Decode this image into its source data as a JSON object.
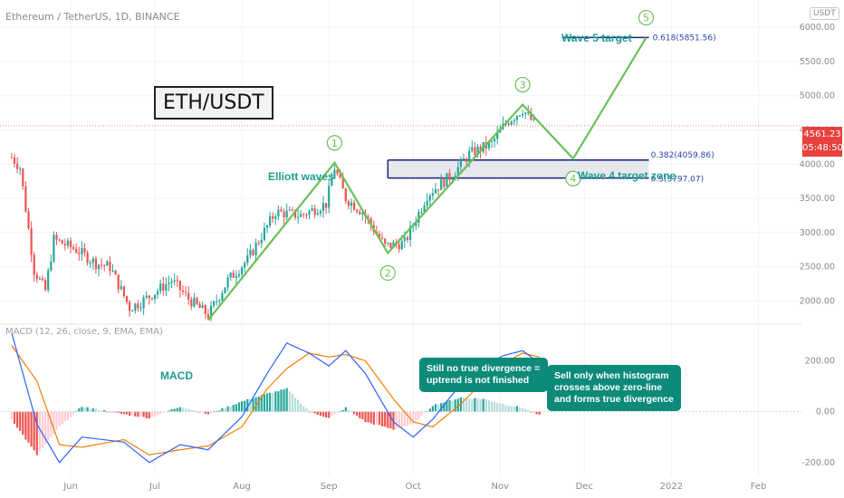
{
  "header": {
    "symbol_title": "Ethereum / TetherUS, 1D, BINANCE",
    "currency_badge": "USDT",
    "pair_label": "ETH/USDT"
  },
  "price_tag": {
    "price": "4561.23",
    "countdown": "05:48:50"
  },
  "annotations": {
    "elliott_label": "Elliott waves",
    "macd_label": "MACD",
    "wave5_target": "Wave 5 target",
    "wave4_zone": "Wave 4 target zone",
    "fib_618": "0.618(5851.56)",
    "fib_382": "0.382(4059.86)",
    "fib_5": "0.5(3797.07)",
    "wave_numbers": [
      "1",
      "2",
      "3",
      "4",
      "5"
    ],
    "note_divergence": "Still no true divergence = uptrend is not finished",
    "note_sell": "Sell only when histogram crosses above zero-line and forms true divergence"
  },
  "macd_indicator": {
    "title": "MACD (12, 26, close, 9, EMA, EMA)"
  },
  "colors": {
    "bull": "#26a69a",
    "bear": "#ef5350",
    "wave_line": "#6cbf5a",
    "macd_line": "#2962ff",
    "signal_line": "#f57c00",
    "zone_fill": "#e6e8ee",
    "zone_border": "#1a237e",
    "note_bg": "#0d8a7a"
  },
  "chart_data": {
    "type": "candlestick",
    "x_tick_labels": [
      "Jun",
      "Jul",
      "Aug",
      "Sep",
      "Oct",
      "Nov",
      "Dec",
      "2022",
      "Feb"
    ],
    "price_axis": {
      "ticks": [
        2000,
        2500,
        3000,
        3500,
        4000,
        4500,
        5000,
        5500,
        6000
      ],
      "tick_labels": [
        "2000.00",
        "2500.00",
        "3000.00",
        "3500.00",
        "4000.00",
        "4500.00",
        "5000.00",
        "5500.00",
        "6000.00"
      ],
      "range": [
        1700,
        6400
      ]
    },
    "macd_axis": {
      "ticks": [
        -200,
        0,
        200
      ],
      "tick_labels": [
        "-200.00",
        "0.00",
        "200.00"
      ],
      "range": [
        -240,
        330
      ]
    },
    "last_price": 4561.23,
    "wave_count": [
      {
        "label": "start",
        "date": "2021-07-20",
        "price": 1720
      },
      {
        "label": "1",
        "date": "2021-09-03",
        "price": 4020
      },
      {
        "label": "2",
        "date": "2021-09-22",
        "price": 2700
      },
      {
        "label": "3",
        "date": "2021-11-09",
        "price": 4870
      },
      {
        "label": "4",
        "date": "2021-11-27",
        "price": 4080
      },
      {
        "label": "5",
        "date": "2021-12-23",
        "price": 5850
      }
    ],
    "fib_levels": [
      {
        "ratio": 0.618,
        "price": 5851.56
      },
      {
        "ratio": 0.382,
        "price": 4059.86
      },
      {
        "ratio": 0.5,
        "price": 3797.07
      }
    ],
    "price_anchors": [
      {
        "date": "2021-05-11",
        "price": 4100
      },
      {
        "date": "2021-05-14",
        "price": 3950
      },
      {
        "date": "2021-05-19",
        "price": 2450
      },
      {
        "date": "2021-05-23",
        "price": 2150
      },
      {
        "date": "2021-05-26",
        "price": 2900
      },
      {
        "date": "2021-06-03",
        "price": 2750
      },
      {
        "date": "2021-06-10",
        "price": 2550
      },
      {
        "date": "2021-06-15",
        "price": 2500
      },
      {
        "date": "2021-06-22",
        "price": 1900
      },
      {
        "date": "2021-06-26",
        "price": 1980
      },
      {
        "date": "2021-07-07",
        "price": 2300
      },
      {
        "date": "2021-07-13",
        "price": 2030
      },
      {
        "date": "2021-07-20",
        "price": 1790
      },
      {
        "date": "2021-07-27",
        "price": 2300
      },
      {
        "date": "2021-08-03",
        "price": 2600
      },
      {
        "date": "2021-08-13",
        "price": 3300
      },
      {
        "date": "2021-08-22",
        "price": 3250
      },
      {
        "date": "2021-08-31",
        "price": 3420
      },
      {
        "date": "2021-09-03",
        "price": 3950
      },
      {
        "date": "2021-09-07",
        "price": 3500
      },
      {
        "date": "2021-09-13",
        "price": 3300
      },
      {
        "date": "2021-09-21",
        "price": 2800
      },
      {
        "date": "2021-09-28",
        "price": 2850
      },
      {
        "date": "2021-10-06",
        "price": 3550
      },
      {
        "date": "2021-10-15",
        "price": 3850
      },
      {
        "date": "2021-10-21",
        "price": 4150
      },
      {
        "date": "2021-10-29",
        "price": 4300
      },
      {
        "date": "2021-11-03",
        "price": 4600
      },
      {
        "date": "2021-11-09",
        "price": 4800
      },
      {
        "date": "2021-11-13",
        "price": 4600
      }
    ],
    "macd_anchors": [
      {
        "date": "2021-05-11",
        "macd": 310,
        "signal": 260,
        "hist": -30
      },
      {
        "date": "2021-05-20",
        "macd": -50,
        "signal": 120,
        "hist": -170
      },
      {
        "date": "2021-05-28",
        "macd": -200,
        "signal": -130,
        "hist": -60
      },
      {
        "date": "2021-06-05",
        "macd": -100,
        "signal": -140,
        "hist": 20
      },
      {
        "date": "2021-06-20",
        "macd": -120,
        "signal": -110,
        "hist": -10
      },
      {
        "date": "2021-06-29",
        "macd": -200,
        "signal": -170,
        "hist": -25
      },
      {
        "date": "2021-07-10",
        "macd": -130,
        "signal": -150,
        "hist": 20
      },
      {
        "date": "2021-07-20",
        "macd": -150,
        "signal": -135,
        "hist": -10
      },
      {
        "date": "2021-08-01",
        "macd": -20,
        "signal": -60,
        "hist": 40
      },
      {
        "date": "2021-08-10",
        "macd": 150,
        "signal": 90,
        "hist": 70
      },
      {
        "date": "2021-08-17",
        "macd": 270,
        "signal": 170,
        "hist": 90
      },
      {
        "date": "2021-08-25",
        "macd": 230,
        "signal": 230,
        "hist": 0
      },
      {
        "date": "2021-09-01",
        "macd": 180,
        "signal": 215,
        "hist": -25
      },
      {
        "date": "2021-09-07",
        "macd": 240,
        "signal": 225,
        "hist": 15
      },
      {
        "date": "2021-09-14",
        "macd": 150,
        "signal": 200,
        "hist": -40
      },
      {
        "date": "2021-09-24",
        "macd": -40,
        "signal": 50,
        "hist": -70
      },
      {
        "date": "2021-10-01",
        "macd": -100,
        "signal": -40,
        "hist": -50
      },
      {
        "date": "2021-10-08",
        "macd": -30,
        "signal": -60,
        "hist": 25
      },
      {
        "date": "2021-10-18",
        "macd": 110,
        "signal": 30,
        "hist": 55
      },
      {
        "date": "2021-10-26",
        "macd": 180,
        "signal": 120,
        "hist": 50
      },
      {
        "date": "2021-11-02",
        "macd": 220,
        "signal": 190,
        "hist": 30
      },
      {
        "date": "2021-11-09",
        "macd": 240,
        "signal": 230,
        "hist": 15
      },
      {
        "date": "2021-11-15",
        "macd": 190,
        "signal": 215,
        "hist": -15
      }
    ]
  }
}
